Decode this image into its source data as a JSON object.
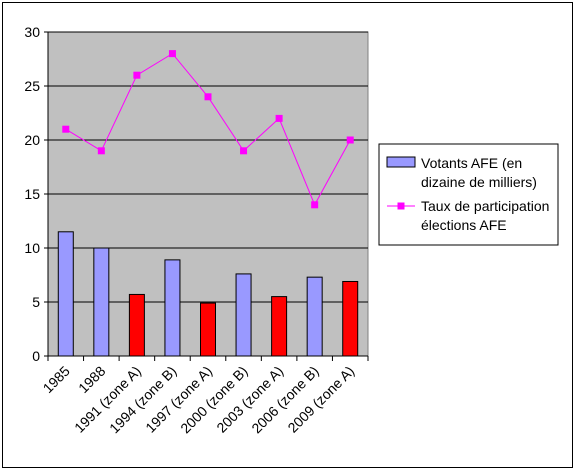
{
  "chart_data": {
    "type": "bar",
    "categories": [
      "1985",
      "1988",
      "1991 (zone A)",
      "1994 (zone B)",
      "1997 (zone A)",
      "2000 (zone B)",
      "2003 (zone A)",
      "2006 (zone B)",
      "2009 (zone A)"
    ],
    "series": [
      {
        "name": "Votants AFE  (en dizaine de milliers)",
        "type": "bar",
        "values": [
          11.5,
          10.0,
          5.7,
          8.9,
          4.9,
          7.6,
          5.5,
          7.3,
          6.9
        ],
        "default_color": "#9999ff",
        "highlight_color": "#ff0000",
        "highlight_categories": [
          "1991 (zone A)",
          "1997 (zone A)",
          "2003 (zone A)",
          "2009 (zone A)"
        ]
      },
      {
        "name": "Taux de participation élections AFE",
        "type": "line",
        "values": [
          21,
          19,
          26,
          28,
          24,
          19,
          22,
          14,
          20
        ],
        "color": "#ff00ff"
      }
    ],
    "ylim": [
      0,
      30
    ],
    "yticks": [
      0,
      5,
      10,
      15,
      20,
      25,
      30
    ],
    "grid": true,
    "plot_background": "#c0c0c0",
    "legend_position": "right",
    "legend_lines": [
      [
        "Votants AFE  (en",
        "dizaine de milliers)"
      ],
      [
        "Taux de participation",
        "élections AFE"
      ]
    ]
  }
}
